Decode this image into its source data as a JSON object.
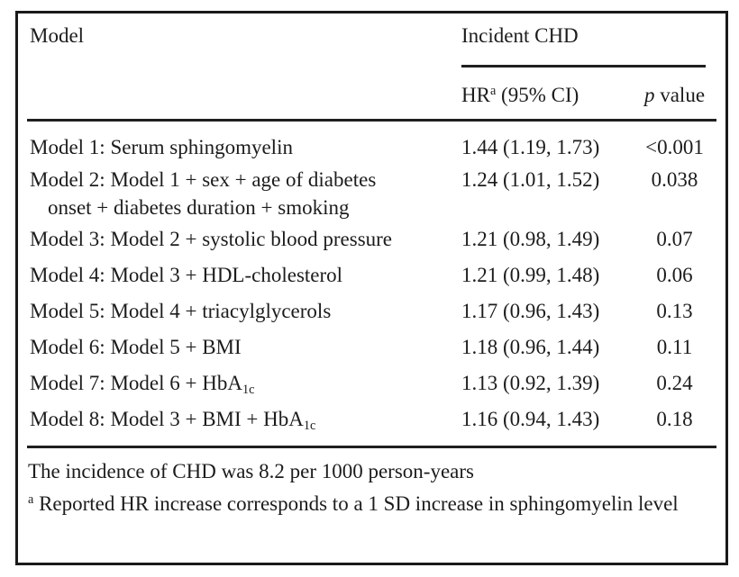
{
  "colors": {
    "ink": "#1c1c1c",
    "rule": "#1f1f1f",
    "background": "#ffffff"
  },
  "table": {
    "header": {
      "col1": "Model",
      "group": "Incident CHD",
      "sub_hr": [
        {
          "t": "HR"
        },
        {
          "t": "a",
          "sup": true
        },
        {
          "t": " (95% CI)"
        }
      ],
      "sub_p": [
        {
          "t": "p",
          "i": true
        },
        {
          "t": " value"
        }
      ]
    },
    "rows": [
      {
        "model": [
          [
            {
              "t": "Model 1: Serum sphingomyelin"
            }
          ]
        ],
        "hr": "1.44 (1.19, 1.73)",
        "p": "<0.001"
      },
      {
        "model": [
          [
            {
              "t": "Model 2: Model 1 + sex + age of diabetes"
            }
          ],
          [
            {
              "t": "onset + diabetes duration + smoking"
            }
          ]
        ],
        "hr": "1.24 (1.01, 1.52)",
        "p": "0.038"
      },
      {
        "model": [
          [
            {
              "t": "Model 3: Model 2 + systolic blood pressure"
            }
          ]
        ],
        "hr": "1.21 (0.98, 1.49)",
        "p": "0.07"
      },
      {
        "model": [
          [
            {
              "t": "Model 4: Model 3 + HDL-cholesterol"
            }
          ]
        ],
        "hr": "1.21 (0.99, 1.48)",
        "p": "0.06"
      },
      {
        "model": [
          [
            {
              "t": "Model 5: Model 4 + triacylglycerols"
            }
          ]
        ],
        "hr": "1.17 (0.96, 1.43)",
        "p": "0.13"
      },
      {
        "model": [
          [
            {
              "t": "Model 6: Model 5 + BMI"
            }
          ]
        ],
        "hr": "1.18 (0.96, 1.44)",
        "p": "0.11"
      },
      {
        "model": [
          [
            {
              "t": "Model 7: Model 6 + HbA"
            },
            {
              "t": "1c",
              "sub": true
            }
          ]
        ],
        "hr": "1.13 (0.92, 1.39)",
        "p": "0.24"
      },
      {
        "model": [
          [
            {
              "t": "Model 8: Model 3 + BMI + HbA"
            },
            {
              "t": "1c",
              "sub": true
            }
          ]
        ],
        "hr": "1.16 (0.94, 1.43)",
        "p": "0.18"
      }
    ],
    "notes": [
      [
        {
          "t": "The incidence of CHD was 8.2 per 1000 person-years"
        }
      ],
      [
        {
          "t": "a",
          "sup": true
        },
        {
          "t": " Reported HR increase corresponds to a 1 SD increase in sphingomyelin level"
        }
      ]
    ]
  }
}
